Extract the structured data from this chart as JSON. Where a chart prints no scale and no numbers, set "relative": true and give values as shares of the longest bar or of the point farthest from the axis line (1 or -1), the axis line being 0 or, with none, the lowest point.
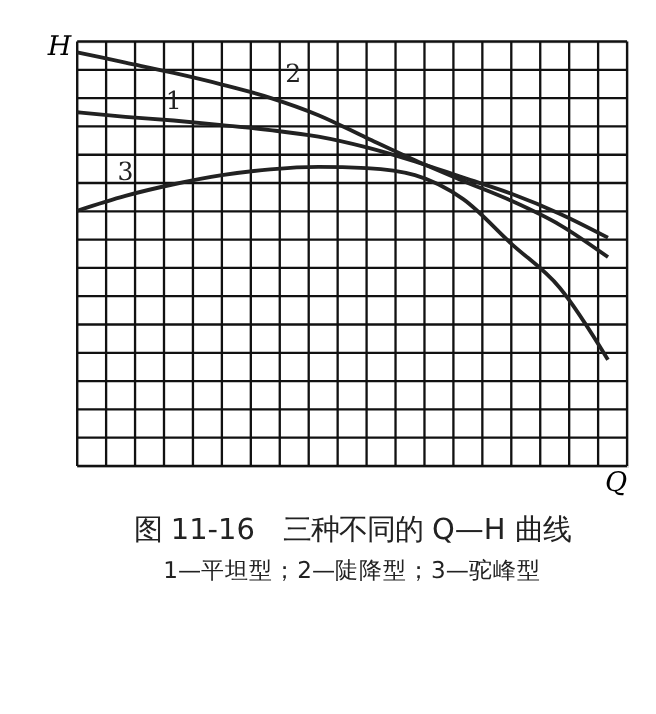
{
  "chart_data": {
    "type": "line",
    "relative": true,
    "title": "图 11-16　三种不同的 Q—H 曲线",
    "subtitle": "1—平坦型；2—陡降型；3—驼峰型",
    "xlabel": "Q",
    "ylabel": "H",
    "categories": [
      null,
      null,
      null,
      null,
      null,
      null,
      null,
      null,
      null,
      null,
      null,
      null
    ],
    "series": [
      {
        "name": "1",
        "color": "#222222",
        "values": [
          0.855,
          0.844,
          0.835,
          0.824,
          0.812,
          0.796,
          0.77,
          0.736,
          0.697,
          0.658,
          0.61,
          0.552
        ]
      },
      {
        "name": "2",
        "color": "#222222",
        "values": [
          1.0,
          0.975,
          0.95,
          0.922,
          0.89,
          0.848,
          0.793,
          0.739,
          0.689,
          0.641,
          0.583,
          0.505
        ]
      },
      {
        "name": "3",
        "color": "#222222",
        "values": [
          0.617,
          0.653,
          0.681,
          0.703,
          0.717,
          0.723,
          0.72,
          0.703,
          0.645,
          0.537,
          0.431,
          0.257
        ]
      }
    ],
    "grid": true,
    "legend": false,
    "marker": "none",
    "line_style": "solid"
  }
}
